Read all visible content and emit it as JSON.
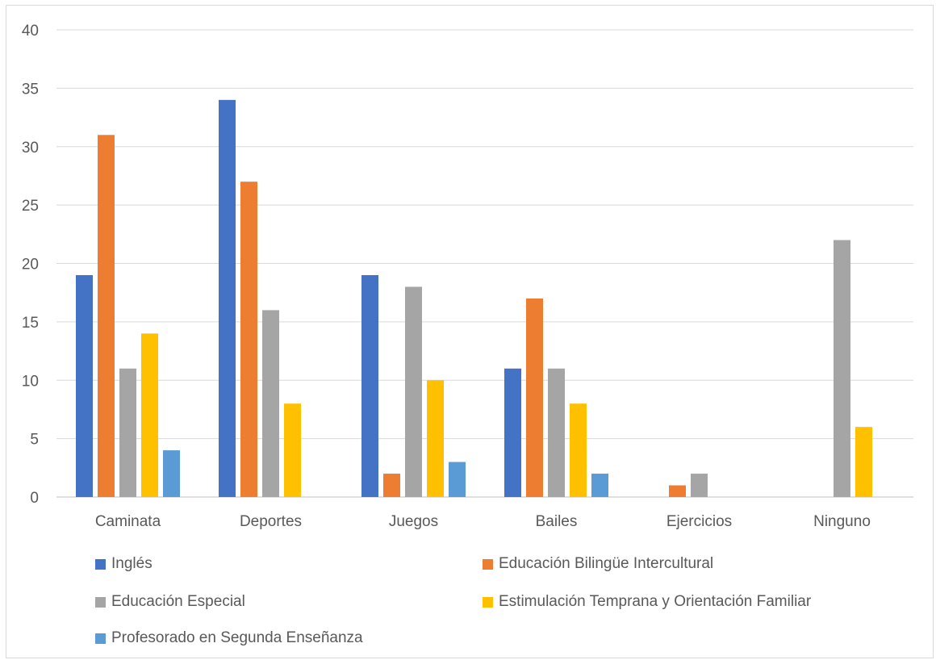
{
  "chart_data": {
    "type": "bar",
    "title": "",
    "xlabel": "",
    "ylabel": "",
    "ylim": [
      0,
      40
    ],
    "yticks": [
      0,
      5,
      10,
      15,
      20,
      25,
      30,
      35,
      40
    ],
    "grid": true,
    "legend_position": "bottom",
    "categories": [
      "Caminata",
      "Deportes",
      "Juegos",
      "Bailes",
      "Ejercicios",
      "Ninguno"
    ],
    "series": [
      {
        "name": "Inglés",
        "color": "#4472c4",
        "values": [
          19,
          34,
          19,
          11,
          0,
          0
        ]
      },
      {
        "name": "Educación Bilingüe Intercultural",
        "color": "#ed7d31",
        "values": [
          31,
          27,
          2,
          17,
          1,
          0
        ]
      },
      {
        "name": "Educación Especial",
        "color": "#a5a5a5",
        "values": [
          11,
          16,
          18,
          11,
          2,
          22
        ]
      },
      {
        "name": "Estimulación Temprana y Orientación Familiar",
        "color": "#ffc000",
        "values": [
          14,
          8,
          10,
          8,
          0,
          6
        ]
      },
      {
        "name": "Profesorado en Segunda Enseñanza",
        "color": "#5b9bd5",
        "values": [
          4,
          0,
          3,
          2,
          0,
          0
        ]
      }
    ]
  }
}
